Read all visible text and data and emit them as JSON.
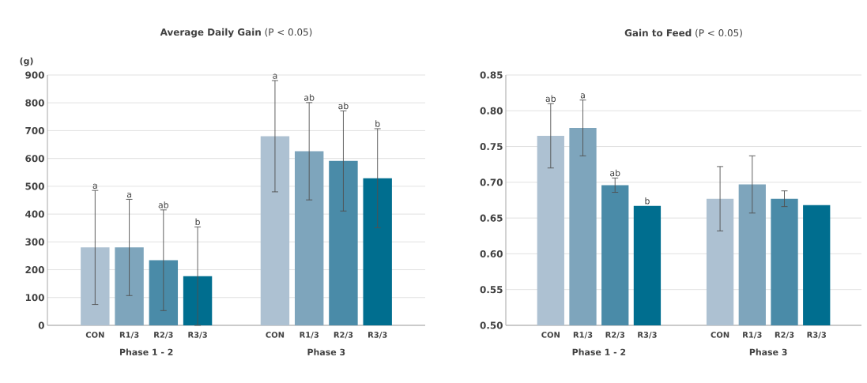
{
  "chart_data": [
    {
      "type": "bar",
      "title": "**Average Daily Gain** (P < 0.05)",
      "ylabel": "(g)",
      "categories": [
        "Phase 1 - 2",
        "Phase 3"
      ],
      "ylim": [
        0,
        900
      ],
      "yticks": [
        0,
        100,
        200,
        300,
        400,
        500,
        600,
        700,
        800,
        900
      ],
      "grid": "y",
      "annotations": [
        "a",
        "a",
        "ab",
        "b",
        "a",
        "ab",
        "ab",
        "b"
      ],
      "series": [
        {
          "name": "CON",
          "color": "#adc1d2",
          "values": [
            280,
            680
          ],
          "errors": [
            205,
            200
          ]
        },
        {
          "name": "R1/3",
          "color": "#7ea5bc",
          "values": [
            280,
            626
          ],
          "errors": [
            173,
            175
          ]
        },
        {
          "name": "R2/3",
          "color": "#4a8ba8",
          "values": [
            234,
            591
          ],
          "errors": [
            181,
            180
          ]
        },
        {
          "name": "R3/3",
          "color": "#006e8f",
          "values": [
            177,
            529
          ],
          "errors": [
            [
              0,
              354
            ],
            178
          ]
        }
      ]
    },
    {
      "type": "bar",
      "title": "**Gain to Feed** (P < 0.05)",
      "categories": [
        "Phase 1 - 2",
        "Phase 3"
      ],
      "ylim": [
        0.5,
        0.85
      ],
      "yticks": [
        {
          "value": 0.5,
          "label": "0.50"
        },
        {
          "value": 0.55,
          "label": "0.55"
        },
        {
          "value": 0.6,
          "label": "0.60"
        },
        {
          "value": 0.65,
          "label": "0.65"
        },
        {
          "value": 0.7,
          "label": "0.70"
        },
        {
          "value": 0.75,
          "label": "0.75"
        },
        {
          "value": 0.8,
          "label": "0.80"
        },
        {
          "value": 0.85,
          "label": "0.85"
        }
      ],
      "grid": "y",
      "annotations": [
        "ab",
        "a",
        "ab",
        "b"
      ],
      "series": [
        {
          "name": "CON",
          "color": "#adc1d2",
          "values": [
            0.765,
            0.677
          ],
          "errors": [
            0.045,
            0.045
          ]
        },
        {
          "name": "R1/3",
          "color": "#7ea5bc",
          "values": [
            0.776,
            0.697
          ],
          "errors": [
            0.039,
            0.04
          ]
        },
        {
          "name": "R2/3",
          "color": "#4a8ba8",
          "values": [
            0.696,
            0.677
          ],
          "errors": [
            0.01,
            0.011
          ]
        },
        {
          "name": "R3/3",
          "color": "#006e8f",
          "values": [
            0.667,
            0.668
          ],
          "errors": [
            null,
            null
          ]
        }
      ]
    }
  ]
}
